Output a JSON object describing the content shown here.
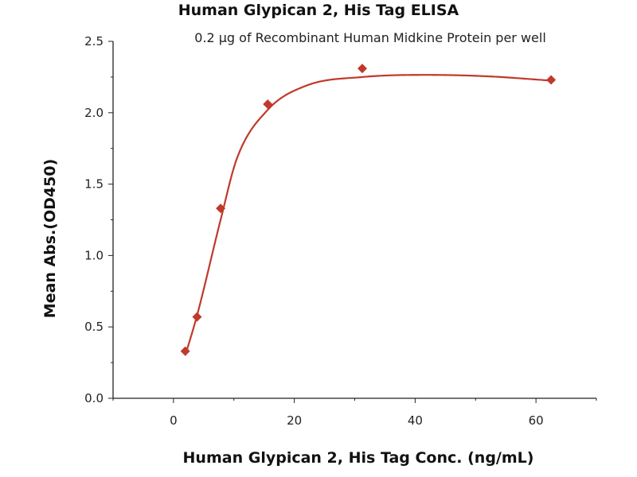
{
  "chart_data": {
    "type": "scatter",
    "title": "Human Glypican 2, His Tag ELISA",
    "subtitle": "0.2 μg of Recombinant Human Midkine Protein per well",
    "xlabel": "Human Glypican 2, His Tag Conc. (ng/mL)",
    "ylabel": "Mean Abs.(OD450)",
    "xlim": [
      -10,
      70
    ],
    "ylim": [
      0,
      2.5
    ],
    "x_ticks": [
      0,
      20,
      40,
      60
    ],
    "x_tick_labels": [
      "0",
      "20",
      "40",
      "60"
    ],
    "y_ticks": [
      0,
      0.5,
      1.0,
      1.5,
      2.0,
      2.5
    ],
    "y_tick_labels": [
      "0.0",
      "0.5",
      "1.0",
      "1.5",
      "2.0",
      "2.5"
    ],
    "grid": false,
    "series": [
      {
        "x": [
          1.95,
          3.9,
          7.8,
          15.6,
          31.25,
          62.5
        ],
        "y": [
          0.33,
          0.57,
          1.33,
          2.06,
          2.31,
          2.23
        ],
        "marker": "diamond",
        "fit": "four-parameter logistic curve",
        "color": "#c0392b"
      }
    ]
  }
}
